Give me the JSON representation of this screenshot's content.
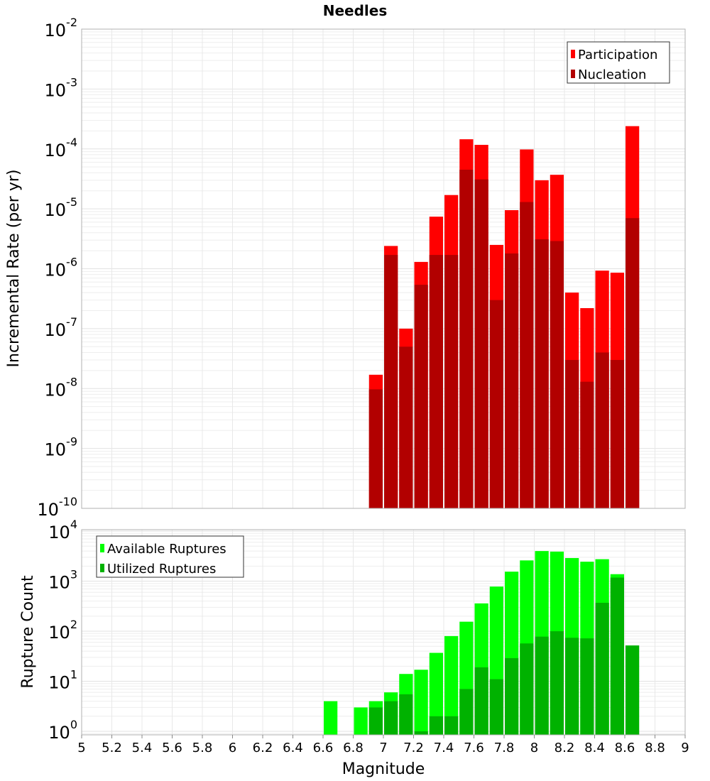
{
  "chart_data": [
    {
      "type": "bar",
      "title": "Needles",
      "xlabel": "",
      "ylabel": "Incremental Rate (per yr)",
      "yscale": "log",
      "ylim": [
        1e-10,
        0.01
      ],
      "xlim": [
        5,
        9
      ],
      "grid": true,
      "legend_position": "top-right",
      "bar_width": 0.1,
      "x": [
        6.95,
        7.05,
        7.15,
        7.25,
        7.35,
        7.45,
        7.55,
        7.65,
        7.75,
        7.85,
        7.95,
        8.05,
        8.15,
        8.25,
        8.35,
        8.45,
        8.55,
        8.65
      ],
      "series": [
        {
          "name": "Participation",
          "color": "#ff0000",
          "values": [
            1.7e-08,
            2.4e-06,
            1e-07,
            1.3e-06,
            7.4e-06,
            1.7e-05,
            0.000145,
            0.000117,
            2.5e-06,
            9.5e-06,
            9.8e-05,
            3e-05,
            3.7e-05,
            4e-07,
            2.2e-07,
            9.3e-07,
            8.6e-07,
            0.00024
          ]
        },
        {
          "name": "Nucleation",
          "color": "#b20000",
          "values": [
            9.7e-09,
            1.7e-06,
            5e-08,
            5.4e-07,
            1.7e-06,
            1.7e-06,
            4.5e-05,
            3.1e-05,
            3e-07,
            1.8e-06,
            1.3e-05,
            3.1e-06,
            2.9e-06,
            3e-08,
            1.3e-08,
            4e-08,
            3e-08,
            7e-06
          ]
        }
      ],
      "ytick_exponents": [
        -10,
        -9,
        -8,
        -7,
        -6,
        -5,
        -4,
        -3,
        -2
      ]
    },
    {
      "type": "bar",
      "title": "",
      "xlabel": "Magnitude",
      "ylabel": "Rupture Count",
      "yscale": "log",
      "ylim": [
        0.85,
        10700
      ],
      "xlim": [
        5,
        9
      ],
      "grid": true,
      "legend_position": "top-left",
      "bar_width": 0.1,
      "x": [
        6.65,
        6.75,
        6.85,
        6.95,
        7.05,
        7.15,
        7.25,
        7.35,
        7.45,
        7.55,
        7.65,
        7.75,
        7.85,
        7.95,
        8.05,
        8.15,
        8.25,
        8.35,
        8.45,
        8.55,
        8.65
      ],
      "series": [
        {
          "name": "Available Ruptures",
          "color": "#00ff00",
          "values": [
            4,
            0,
            3,
            4,
            6,
            14,
            17,
            37,
            80,
            155,
            360,
            780,
            1550,
            2600,
            4000,
            3900,
            2900,
            2450,
            2750,
            1380,
            0
          ]
        },
        {
          "name": "Utilized Ruptures",
          "color": "#00b200",
          "values": [
            0,
            0,
            0,
            3,
            4,
            5.5,
            1,
            2,
            2,
            7,
            19,
            11,
            29,
            57,
            78,
            100,
            74,
            72,
            370,
            1180,
            52
          ]
        }
      ],
      "ytick_exponents": [
        0,
        1,
        2,
        3,
        4
      ]
    }
  ],
  "xticks": [
    "5",
    "5.2",
    "5.4",
    "5.6",
    "5.8",
    "6",
    "6.2",
    "6.4",
    "6.6",
    "6.8",
    "7",
    "7.2",
    "7.4",
    "7.6",
    "7.8",
    "8",
    "8.2",
    "8.4",
    "8.6",
    "8.8",
    "9"
  ],
  "tick_base": "10"
}
